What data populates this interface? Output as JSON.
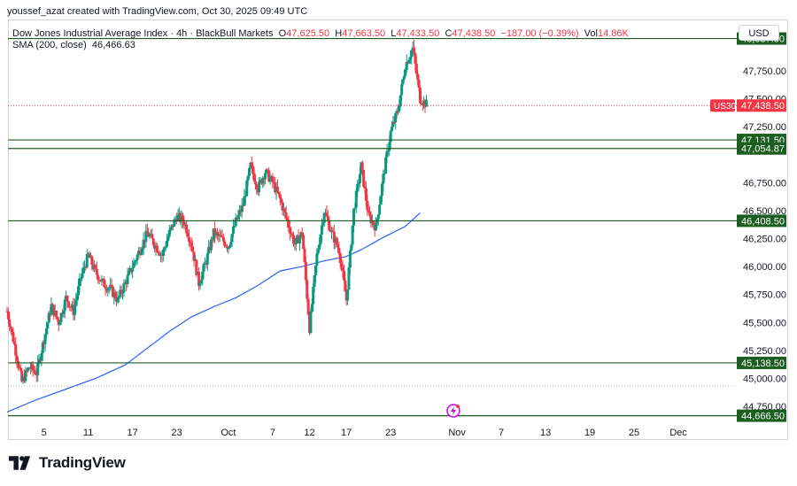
{
  "caption": "youssef_azat created with TradingView.com, Oct 30, 2025 09:49 UTC",
  "legend": {
    "symbol": "Dow Jones Industrial Average Index · 4h · BlackBull Markets",
    "o_label": "O",
    "o_value": "47,625.50",
    "h_label": "H",
    "h_value": "47,663.50",
    "l_label": "L",
    "l_value": "47,433.50",
    "c_label": "C",
    "c_value": "47,438.50",
    "change": "−187.00 (−0.39%)",
    "vol_label": "Vol",
    "vol_value": "14.86K",
    "sma_label": "SMA (200, close)",
    "sma_value": "46,466.63"
  },
  "currency": "USD",
  "brand": {
    "name": "TradingView",
    "logo_icon": "tradingview-logo-icon"
  },
  "colors": {
    "up": "#089981",
    "down": "#f23645",
    "sma": "#2962ff",
    "level_line": "#1b5e20",
    "level_label_bg": "#1b5e20",
    "price_label_bg": "#f23645"
  },
  "chart_data": {
    "type": "candlestick",
    "symbol": "US30",
    "timeframe": "4h",
    "ylim": [
      44600,
      48200
    ],
    "y_ticks": [
      {
        "value": 47750,
        "label": "47,750.00"
      },
      {
        "value": 47500,
        "label": "47,500.00"
      },
      {
        "value": 47250,
        "label": "47,250.00"
      },
      {
        "value": 46750,
        "label": "46,750.00"
      },
      {
        "value": 46500,
        "label": "46,500.00"
      },
      {
        "value": 46250,
        "label": "46,250.00"
      },
      {
        "value": 46000,
        "label": "46,000.00"
      },
      {
        "value": 45750,
        "label": "45,750.00"
      },
      {
        "value": 45500,
        "label": "45,500.00"
      },
      {
        "value": 45250,
        "label": "45,250.00"
      },
      {
        "value": 45000,
        "label": "45,000.00"
      },
      {
        "value": 44750,
        "label": "44,750.00"
      }
    ],
    "x_ticks": [
      {
        "day": 5,
        "label": "5"
      },
      {
        "day": 11,
        "label": "11"
      },
      {
        "day": 17,
        "label": "17"
      },
      {
        "day": 23,
        "label": "23"
      },
      {
        "day": 30,
        "label": "Oct"
      },
      {
        "day": 36,
        "label": "7"
      },
      {
        "day": 41,
        "label": "12"
      },
      {
        "day": 46,
        "label": "17"
      },
      {
        "day": 52,
        "label": "23"
      },
      {
        "day": 61,
        "label": "Nov"
      },
      {
        "day": 67,
        "label": "7"
      },
      {
        "day": 73,
        "label": "13"
      },
      {
        "day": 79,
        "label": "19"
      },
      {
        "day": 85,
        "label": "25"
      },
      {
        "day": 91,
        "label": "Dec"
      }
    ],
    "levels": [
      {
        "value": 48037.5,
        "label": "48,037.50"
      },
      {
        "value": 47131.5,
        "label": "47,131.50"
      },
      {
        "value": 47054.87,
        "label": "47,054.87"
      },
      {
        "value": 46408.5,
        "label": "46,408.50"
      },
      {
        "value": 45138.5,
        "label": "45,138.50"
      },
      {
        "value": 44666.5,
        "label": "44,666.50"
      }
    ],
    "last_price": {
      "value": 47438.5,
      "label": "47,438.50",
      "tag": "US30"
    },
    "dotted_line": {
      "value": 44930
    },
    "sma": {
      "name": "SMA (200, close)",
      "points": [
        [
          0,
          44700
        ],
        [
          4,
          44810
        ],
        [
          8,
          44905
        ],
        [
          12,
          45000
        ],
        [
          16,
          45120
        ],
        [
          19,
          45270
        ],
        [
          22,
          45420
        ],
        [
          25,
          45550
        ],
        [
          28,
          45640
        ],
        [
          31,
          45720
        ],
        [
          34,
          45830
        ],
        [
          37,
          45960
        ],
        [
          40,
          46000
        ],
        [
          43,
          46050
        ],
        [
          46,
          46090
        ],
        [
          48,
          46150
        ],
        [
          51,
          46260
        ],
        [
          54,
          46360
        ],
        [
          56,
          46480
        ]
      ]
    },
    "candles_path": [
      [
        0,
        45600
      ],
      [
        1,
        45300
      ],
      [
        2,
        44970
      ],
      [
        3,
        45100
      ],
      [
        4,
        45050
      ],
      [
        5,
        45350
      ],
      [
        6,
        45650
      ],
      [
        7,
        45500
      ],
      [
        8,
        45720
      ],
      [
        9,
        45600
      ],
      [
        10,
        45900
      ],
      [
        11,
        46100
      ],
      [
        12,
        45950
      ],
      [
        13,
        45850
      ],
      [
        14,
        45800
      ],
      [
        15,
        45700
      ],
      [
        16,
        45850
      ],
      [
        17,
        46000
      ],
      [
        18,
        46150
      ],
      [
        19,
        46300
      ],
      [
        20,
        46200
      ],
      [
        21,
        46100
      ],
      [
        22,
        46300
      ],
      [
        23,
        46450
      ],
      [
        24,
        46400
      ],
      [
        25,
        46200
      ],
      [
        26,
        45850
      ],
      [
        27,
        46050
      ],
      [
        28,
        46300
      ],
      [
        29,
        46250
      ],
      [
        30,
        46180
      ],
      [
        31,
        46400
      ],
      [
        32,
        46550
      ],
      [
        33,
        46900
      ],
      [
        34,
        46700
      ],
      [
        35,
        46850
      ],
      [
        36,
        46750
      ],
      [
        37,
        46600
      ],
      [
        38,
        46400
      ],
      [
        39,
        46200
      ],
      [
        40,
        46300
      ],
      [
        41,
        45450
      ],
      [
        42,
        46100
      ],
      [
        43,
        46500
      ],
      [
        44,
        46300
      ],
      [
        45,
        46150
      ],
      [
        46,
        45700
      ],
      [
        47,
        46500
      ],
      [
        48,
        46900
      ],
      [
        49,
        46450
      ],
      [
        50,
        46350
      ],
      [
        51,
        46800
      ],
      [
        52,
        47200
      ],
      [
        53,
        47400
      ],
      [
        54,
        47800
      ],
      [
        55,
        47950
      ],
      [
        56,
        47500
      ],
      [
        57,
        47440
      ]
    ],
    "time_domain": [
      0,
      92
    ]
  }
}
